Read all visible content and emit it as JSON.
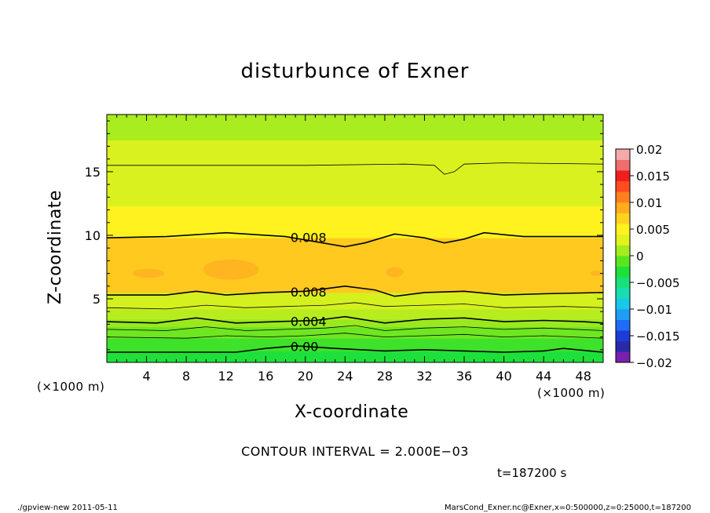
{
  "chart_data": {
    "type": "heatmap",
    "title": "disturbunce of Exner",
    "xlabel": "X-coordinate",
    "ylabel": "Z-coordinate",
    "x_unit": "(×1000 m)",
    "y_unit": "(×1000 m)",
    "xlim": [
      0,
      50
    ],
    "ylim": [
      0,
      19.5
    ],
    "x_ticks": [
      "4",
      "8",
      "12",
      "16",
      "20",
      "24",
      "28",
      "32",
      "36",
      "40",
      "44",
      "48"
    ],
    "x_tick_values": [
      4,
      8,
      12,
      16,
      20,
      24,
      28,
      32,
      36,
      40,
      44,
      48
    ],
    "y_ticks": [
      "5",
      "10",
      "15"
    ],
    "y_tick_values": [
      5,
      10,
      15
    ],
    "colorbar": {
      "ticks": [
        "0.02",
        "0.015",
        "0.01",
        "0.005",
        "0",
        "−0.005",
        "−0.01",
        "−0.015",
        "−0.02"
      ],
      "min": -0.02,
      "max": 0.02,
      "colors": [
        "#7a1fb0",
        "#2a2aa8",
        "#1c3cd8",
        "#1f6cf5",
        "#1f9df5",
        "#19c8e8",
        "#19dcb0",
        "#19e07a",
        "#1fe03a",
        "#5ae61f",
        "#a5ec1f",
        "#e3f21f",
        "#fff21f",
        "#ffd21f",
        "#ffac1f",
        "#ff801f",
        "#ff4d1f",
        "#f01f1f",
        "#f06e6e",
        "#f5aaaa"
      ]
    },
    "bands": [
      {
        "z_min": 0.0,
        "z_max": 0.9,
        "value": 0.001,
        "color": "#1fe03a"
      },
      {
        "z_min": 0.9,
        "z_max": 1.9,
        "value": 0.002,
        "color": "#3ee22a"
      },
      {
        "z_min": 1.9,
        "z_max": 2.8,
        "value": 0.003,
        "color": "#6ee621"
      },
      {
        "z_min": 2.8,
        "z_max": 3.4,
        "value": 0.004,
        "color": "#9ae91f"
      },
      {
        "z_min": 3.4,
        "z_max": 4.2,
        "value": 0.005,
        "color": "#b7ed1f"
      },
      {
        "z_min": 4.2,
        "z_max": 5.5,
        "value": 0.006,
        "color": "#d4f01f"
      },
      {
        "z_min": 5.5,
        "z_max": 9.8,
        "value": 0.009,
        "color": "#ffc91f"
      },
      {
        "z_min": 9.8,
        "z_max": 12.3,
        "value": 0.007,
        "color": "#fff21f"
      },
      {
        "z_min": 12.3,
        "z_max": 17.5,
        "value": 0.005,
        "color": "#d9f21f"
      },
      {
        "z_min": 17.5,
        "z_max": 19.5,
        "value": 0.004,
        "color": "#a9ec1f"
      }
    ],
    "contours": [
      {
        "label": "0.008",
        "label_x": 18.5,
        "points": [
          [
            0,
            9.8
          ],
          [
            6,
            9.9
          ],
          [
            12,
            10.2
          ],
          [
            18,
            9.9
          ],
          [
            21,
            9.5
          ],
          [
            24,
            9.1
          ],
          [
            26,
            9.4
          ],
          [
            29,
            10.1
          ],
          [
            32,
            9.8
          ],
          [
            34,
            9.4
          ],
          [
            36,
            9.7
          ],
          [
            38,
            10.2
          ],
          [
            42,
            9.9
          ],
          [
            46,
            9.9
          ],
          [
            50,
            9.9
          ]
        ]
      },
      {
        "label": "0.008",
        "label_x": 18.5,
        "points": [
          [
            0,
            5.3
          ],
          [
            6,
            5.3
          ],
          [
            9,
            5.6
          ],
          [
            12,
            5.3
          ],
          [
            16,
            5.5
          ],
          [
            20,
            5.6
          ],
          [
            24,
            6.0
          ],
          [
            27,
            5.7
          ],
          [
            29,
            5.2
          ],
          [
            32,
            5.5
          ],
          [
            36,
            5.6
          ],
          [
            40,
            5.3
          ],
          [
            44,
            5.4
          ],
          [
            50,
            5.5
          ]
        ]
      },
      {
        "label": "0.004",
        "label_x": 18.5,
        "points": [
          [
            0,
            3.2
          ],
          [
            5,
            3.1
          ],
          [
            9,
            3.5
          ],
          [
            13,
            3.1
          ],
          [
            17,
            3.2
          ],
          [
            21,
            3.3
          ],
          [
            24,
            3.6
          ],
          [
            28,
            3.1
          ],
          [
            32,
            3.4
          ],
          [
            36,
            3.5
          ],
          [
            40,
            3.2
          ],
          [
            44,
            3.3
          ],
          [
            48,
            3.2
          ],
          [
            50,
            3.1
          ]
        ]
      },
      {
        "label": "0.00",
        "label_x": 18.5,
        "points": [
          [
            0,
            0.8
          ],
          [
            8,
            0.8
          ],
          [
            13,
            0.8
          ],
          [
            16,
            1.1
          ],
          [
            19,
            1.3
          ],
          [
            23,
            1.1
          ],
          [
            28,
            0.9
          ],
          [
            32,
            1.0
          ],
          [
            36,
            0.9
          ],
          [
            40,
            0.8
          ],
          [
            44,
            0.9
          ],
          [
            46,
            1.1
          ],
          [
            50,
            0.8
          ]
        ]
      }
    ],
    "thin_contours": [
      {
        "points": [
          [
            0,
            15.5
          ],
          [
            10,
            15.5
          ],
          [
            20,
            15.5
          ],
          [
            30,
            15.6
          ],
          [
            33,
            15.5
          ],
          [
            34,
            14.8
          ],
          [
            35,
            15.0
          ],
          [
            36,
            15.6
          ],
          [
            40,
            15.7
          ],
          [
            50,
            15.6
          ]
        ]
      },
      {
        "points": [
          [
            0,
            4.3
          ],
          [
            6,
            4.2
          ],
          [
            10,
            4.5
          ],
          [
            14,
            4.3
          ],
          [
            18,
            4.4
          ],
          [
            22,
            4.5
          ],
          [
            25,
            4.7
          ],
          [
            28,
            4.4
          ],
          [
            32,
            4.5
          ],
          [
            36,
            4.6
          ],
          [
            40,
            4.3
          ],
          [
            46,
            4.4
          ],
          [
            50,
            4.3
          ]
        ]
      },
      {
        "points": [
          [
            0,
            2.6
          ],
          [
            6,
            2.5
          ],
          [
            10,
            2.8
          ],
          [
            14,
            2.5
          ],
          [
            18,
            2.6
          ],
          [
            22,
            2.7
          ],
          [
            25,
            2.9
          ],
          [
            28,
            2.5
          ],
          [
            32,
            2.7
          ],
          [
            36,
            2.8
          ],
          [
            40,
            2.6
          ],
          [
            44,
            2.7
          ],
          [
            50,
            2.5
          ]
        ]
      },
      {
        "points": [
          [
            0,
            2.0
          ],
          [
            8,
            1.9
          ],
          [
            12,
            2.1
          ],
          [
            16,
            2.0
          ],
          [
            20,
            2.1
          ],
          [
            24,
            2.3
          ],
          [
            28,
            2.0
          ],
          [
            32,
            2.1
          ],
          [
            36,
            2.2
          ],
          [
            40,
            2.0
          ],
          [
            44,
            2.1
          ],
          [
            50,
            1.9
          ]
        ]
      }
    ],
    "blobs": [
      {
        "x": 4.2,
        "z": 7.0,
        "rx": 1.6,
        "rz": 0.35,
        "color": "#ffb51f"
      },
      {
        "x": 12.5,
        "z": 7.3,
        "rx": 2.8,
        "rz": 0.8,
        "color": "#ffb51f"
      },
      {
        "x": 29.0,
        "z": 7.1,
        "rx": 0.9,
        "rz": 0.4,
        "color": "#ffb51f"
      },
      {
        "x": 49.3,
        "z": 7.0,
        "rx": 0.6,
        "rz": 0.2,
        "color": "#ffb51f"
      }
    ]
  },
  "labels": {
    "title": "disturbunce of Exner",
    "xlabel": "X-coordinate",
    "ylabel": "Z-coordinate",
    "x_unit_left": "(×1000 m)",
    "x_unit_right": "(×1000 m)",
    "contour_interval": "CONTOUR INTERVAL = 2.000E−03",
    "time": "t=187200 s",
    "footer_left": "./gpview-new  2011-05-11",
    "footer_right": "MarsCond_Exner.nc@Exner,x=0:500000,z=0:25000,t=187200"
  }
}
